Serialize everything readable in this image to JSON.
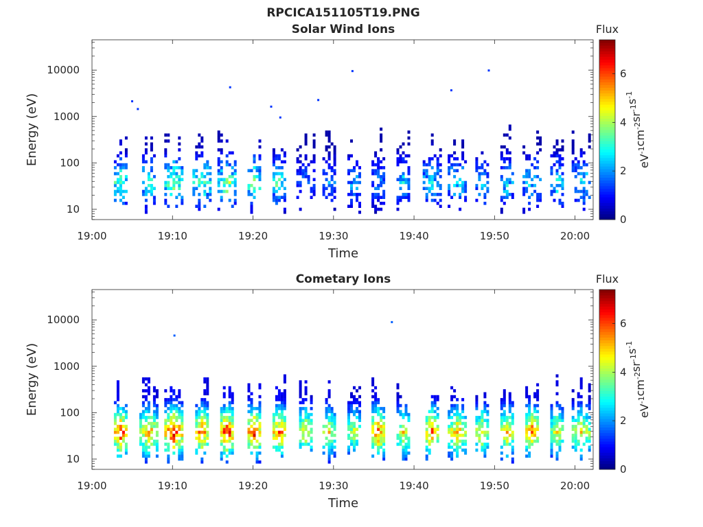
{
  "figure_title": "RPCICA151105T19.PNG",
  "colorbar": {
    "label": "Flux",
    "unit_base": "eV",
    "unit_parts": [
      {
        "base": "eV",
        "exp": "-1"
      },
      {
        "base": "cm",
        "exp": "-2"
      },
      {
        "base": "sr",
        "exp": "-1"
      },
      {
        "base": "s",
        "exp": "-1"
      }
    ],
    "ticks": [
      "0",
      "2",
      "4",
      "6"
    ],
    "range": [
      0,
      7.4
    ],
    "colormap": "jet"
  },
  "chart_data": [
    {
      "type": "heatmap",
      "title": "Solar Wind Ions",
      "xlabel": "Time",
      "ylabel": "Energy (eV)",
      "yscale": "log",
      "ylim": [
        6,
        45000
      ],
      "xlim": [
        "19:00",
        "20:02"
      ],
      "xticks": [
        "19:00",
        "19:10",
        "19:20",
        "19:30",
        "19:40",
        "19:50",
        "20:00"
      ],
      "yticks": [
        "10",
        "100",
        "1000",
        "10000"
      ],
      "ytick_values": [
        10,
        100,
        1000,
        10000
      ],
      "time_bins_min": [
        3.4,
        6.9,
        10.0,
        13.5,
        16.6,
        20.0,
        23.1,
        26.4,
        29.3,
        32.4,
        35.4,
        38.5,
        42.1,
        45.2,
        48.3,
        51.4,
        54.5,
        57.6,
        60.6
      ],
      "peak_flux": [
        3.8,
        3.5,
        4.0,
        3.8,
        4.0,
        4.0,
        3.5,
        2.0,
        2.2,
        2.4,
        2.2,
        2.6,
        3.0,
        3.0,
        2.6,
        2.8,
        2.8,
        3.0,
        3.0
      ],
      "flux_range": [
        0,
        7.4
      ]
    },
    {
      "type": "heatmap",
      "title": "Cometary Ions",
      "xlabel": "Time",
      "ylabel": "Energy (eV)",
      "yscale": "log",
      "ylim": [
        6,
        45000
      ],
      "xlim": [
        "19:00",
        "20:02"
      ],
      "xticks": [
        "19:00",
        "19:10",
        "19:20",
        "19:30",
        "19:40",
        "19:50",
        "20:00"
      ],
      "yticks": [
        "10",
        "100",
        "1000",
        "10000"
      ],
      "ytick_values": [
        10,
        100,
        1000,
        10000
      ],
      "time_bins_min": [
        3.4,
        6.9,
        10.0,
        13.5,
        16.6,
        20.0,
        23.1,
        26.4,
        29.3,
        32.4,
        35.4,
        38.5,
        42.1,
        45.2,
        48.3,
        51.4,
        54.5,
        57.6,
        60.6
      ],
      "peak_flux": [
        6.8,
        5.8,
        7.0,
        6.2,
        6.8,
        6.8,
        6.2,
        5.2,
        5.0,
        4.6,
        6.2,
        5.2,
        6.2,
        5.6,
        5.2,
        5.6,
        6.2,
        5.0,
        5.2
      ],
      "flux_range": [
        0,
        7.4
      ]
    }
  ]
}
